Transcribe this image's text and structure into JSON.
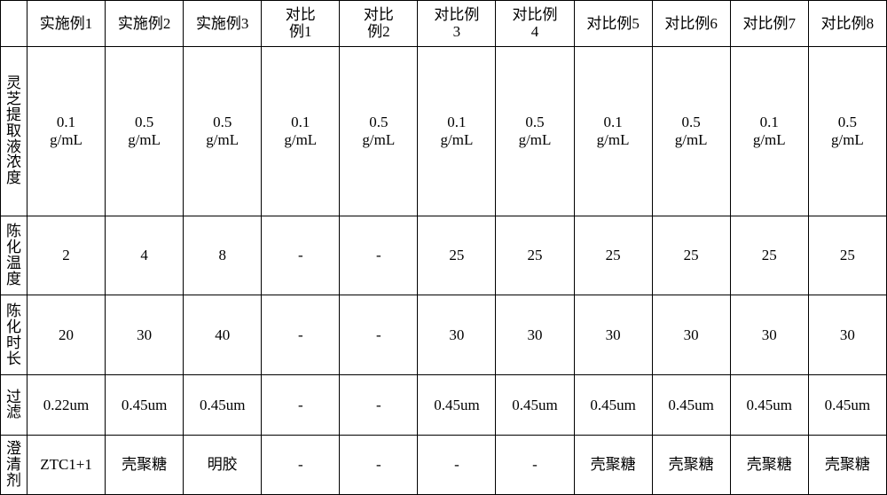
{
  "table": {
    "type": "table",
    "background_color": "#ffffff",
    "border_color": "#000000",
    "font_family": "SimSun",
    "label_fontsize": 17,
    "text_color": "#000000",
    "columns": {
      "rowLabelWidthPx": 30,
      "headers": [
        "",
        "实施例1",
        "实施例2",
        "实施例3",
        "对比<br>例1",
        "对比<br>例2",
        "对比例<br>3",
        "对比例<br>4",
        "对比例5",
        "对比例6",
        "对比例7",
        "对比例8"
      ]
    },
    "rowHeightsPx": [
      46,
      170,
      80,
      80,
      60,
      60
    ],
    "rows": [
      {
        "label": "灵芝提取液浓度",
        "cells": [
          "0.1<br>g/mL",
          "0.5<br>g/mL",
          "0.5<br>g/mL",
          "0.1<br>g/mL",
          "0.5<br>g/mL",
          "0.1<br>g/mL",
          "0.5<br>g/mL",
          "0.1<br>g/mL",
          "0.5<br>g/mL",
          "0.1<br>g/mL",
          "0.5<br>g/mL"
        ]
      },
      {
        "label": "陈化温度",
        "cells": [
          "2",
          "4",
          "8",
          "-",
          "-",
          "25",
          "25",
          "25",
          "25",
          "25",
          "25"
        ]
      },
      {
        "label": "陈化时长",
        "cells": [
          "20",
          "30",
          "40",
          "-",
          "-",
          "30",
          "30",
          "30",
          "30",
          "30",
          "30"
        ]
      },
      {
        "label": "过滤",
        "cells": [
          "0.22um",
          "0.45um",
          "0.45um",
          "-",
          "-",
          "0.45um",
          "0.45um",
          "0.45um",
          "0.45um",
          "0.45um",
          "0.45um"
        ]
      },
      {
        "label": "澄清剂",
        "cells": [
          "ZTC1+1",
          "壳聚糖",
          "明胶",
          "-",
          "-",
          "-",
          "-",
          "壳聚糖",
          "壳聚糖",
          "壳聚糖",
          "壳聚糖"
        ]
      }
    ]
  }
}
